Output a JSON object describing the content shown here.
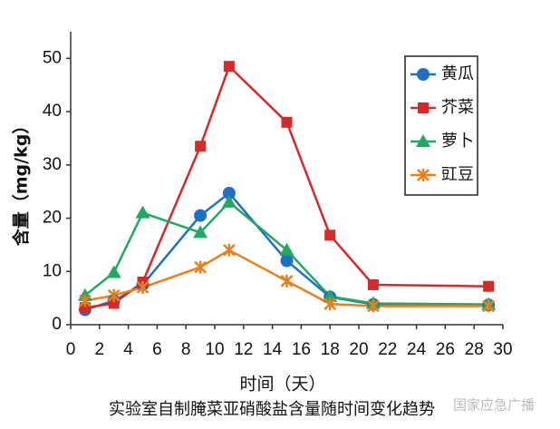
{
  "chart_data": {
    "type": "line",
    "x_label": "时间（天）",
    "y_label": "含量（mg/kg）",
    "caption": "实验室自制腌菜亚硝酸盐含量随时间变化趋势",
    "watermark": "国家应急广播",
    "x": [
      1,
      3,
      5,
      9,
      11,
      15,
      18,
      21,
      29
    ],
    "series": [
      {
        "name": "黄瓜",
        "color": "#1f6fc4",
        "marker": "circle",
        "values": [
          2.8,
          4.5,
          7.5,
          20.5,
          24.7,
          12,
          5.2,
          3.8,
          3.7
        ]
      },
      {
        "name": "芥菜",
        "color": "#d42a2a",
        "marker": "square",
        "values": [
          3.2,
          4,
          8,
          33.5,
          48.5,
          38,
          16.8,
          7.5,
          7.2
        ]
      },
      {
        "name": "萝卜",
        "color": "#22a861",
        "marker": "triangle",
        "values": [
          5.5,
          9.8,
          21,
          17.3,
          23,
          14,
          5.3,
          4,
          3.8
        ]
      },
      {
        "name": "豇豆",
        "color": "#e8801e",
        "marker": "asterisk",
        "values": [
          4.5,
          5.5,
          7,
          10.8,
          14,
          8.2,
          3.9,
          3.5,
          3.5
        ]
      }
    ],
    "xlim": [
      0,
      30
    ],
    "xticks": [
      0,
      2,
      4,
      6,
      8,
      10,
      12,
      14,
      16,
      18,
      20,
      22,
      24,
      26,
      28,
      30
    ],
    "ylim": [
      0,
      55
    ],
    "yticks": [
      0,
      10,
      20,
      30,
      40,
      50
    ],
    "grid": false,
    "legend": "upper right"
  }
}
